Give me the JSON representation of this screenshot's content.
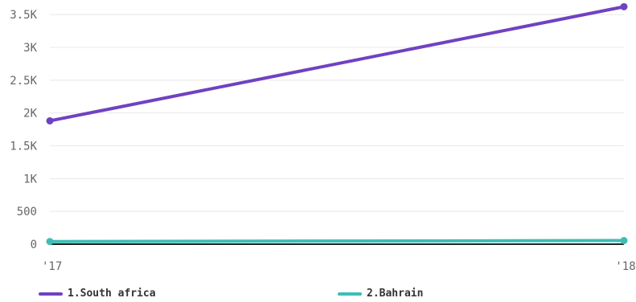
{
  "chart_data": {
    "type": "line",
    "x": [
      "'17",
      "'18"
    ],
    "y_ticks": [
      "0",
      "500",
      "1K",
      "1.5K",
      "2K",
      "2.5K",
      "3K",
      "3.5K"
    ],
    "ylim": [
      0,
      3600
    ],
    "grid": true,
    "legend_position": "bottom",
    "series": [
      {
        "name": "1.South africa",
        "color": "#6f42c1",
        "values": [
          1880,
          3620
        ]
      },
      {
        "name": "2.Bahrain",
        "color": "#3dbdb5",
        "values": [
          40,
          55
        ]
      }
    ]
  }
}
